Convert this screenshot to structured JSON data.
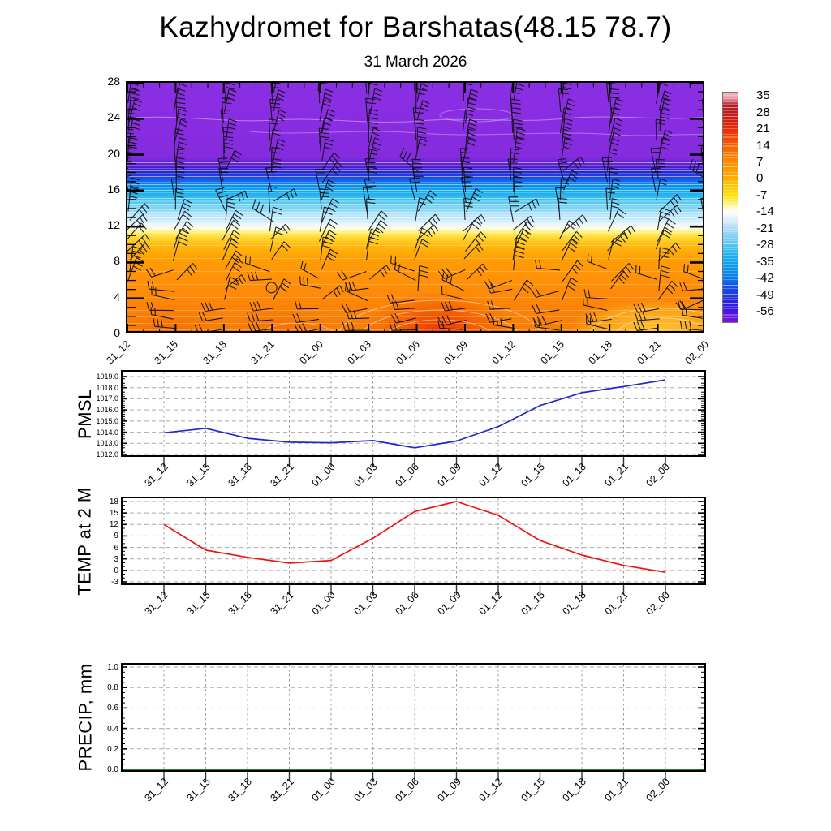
{
  "title": "Kazhydromet for Barshatas(48.15 78.7)",
  "subtitle": "31 March 2026",
  "time_labels": [
    "31_12",
    "31_15",
    "31_18",
    "31_21",
    "01_00",
    "01_03",
    "01_06",
    "01_09",
    "01_12",
    "01_15",
    "01_18",
    "01_21",
    "02_00"
  ],
  "chart_data": [
    {
      "panel": "upper_air_section",
      "type": "heatmap",
      "description": "Time-height cross-section of temperature (shaded, deg C) with wind barbs and thin white temperature contour lines",
      "x_categories": [
        "31_12",
        "31_15",
        "31_18",
        "31_21",
        "01_00",
        "01_03",
        "01_06",
        "01_09",
        "01_12",
        "01_15",
        "01_18",
        "01_21",
        "02_00"
      ],
      "ylim": [
        0,
        28
      ],
      "y_tick_labels": [
        "0",
        "4",
        "8",
        "12",
        "16",
        "20",
        "24",
        "28"
      ],
      "colorbar_tick_labels": [
        "35",
        "28",
        "21",
        "14",
        "7",
        "0",
        "-7",
        "-14",
        "-21",
        "-28",
        "-35",
        "-42",
        "-49",
        "-56"
      ],
      "colorbar_stops": [
        {
          "f": 0.0,
          "c": "#F7B2BC"
        },
        {
          "f": 0.018,
          "c": "#F2A8B4"
        },
        {
          "f": 0.035,
          "c": "#D8707E"
        },
        {
          "f": 0.055,
          "c": "#B22028"
        },
        {
          "f": 0.089,
          "c": "#C01818"
        },
        {
          "f": 0.125,
          "c": "#D81E10"
        },
        {
          "f": 0.161,
          "c": "#E8300C"
        },
        {
          "f": 0.2,
          "c": "#F04A06"
        },
        {
          "f": 0.233,
          "c": "#F56202"
        },
        {
          "f": 0.27,
          "c": "#FA7A00"
        },
        {
          "f": 0.305,
          "c": "#FE8E00"
        },
        {
          "f": 0.34,
          "c": "#FF9E00"
        },
        {
          "f": 0.376,
          "c": "#FFB000"
        },
        {
          "f": 0.41,
          "c": "#FFC704"
        },
        {
          "f": 0.448,
          "c": "#FFE20A"
        },
        {
          "f": 0.48,
          "c": "#FDF06E"
        },
        {
          "f": 0.5,
          "c": "#FDFAC8"
        },
        {
          "f": 0.52,
          "c": "#FEFEF8"
        },
        {
          "f": 0.545,
          "c": "#E6F3FB"
        },
        {
          "f": 0.592,
          "c": "#B0DDF6"
        },
        {
          "f": 0.63,
          "c": "#7ECFF3"
        },
        {
          "f": 0.663,
          "c": "#55C5F0"
        },
        {
          "f": 0.7,
          "c": "#28B4EE"
        },
        {
          "f": 0.735,
          "c": "#12A6EC"
        },
        {
          "f": 0.77,
          "c": "#0C92EA"
        },
        {
          "f": 0.807,
          "c": "#0A7AE8"
        },
        {
          "f": 0.84,
          "c": "#1256E4"
        },
        {
          "f": 0.879,
          "c": "#1C38E0"
        },
        {
          "f": 0.915,
          "c": "#2A20E0"
        },
        {
          "f": 0.95,
          "c": "#4414E2"
        },
        {
          "f": 0.975,
          "c": "#6212E0"
        },
        {
          "f": 1.0,
          "c": "#7E14DE"
        }
      ],
      "approx_temp_profile": [
        {
          "height": 0,
          "temp_c": 10
        },
        {
          "height": 2,
          "temp_c": 8
        },
        {
          "height": 4,
          "temp_c": 7
        },
        {
          "height": 6,
          "temp_c": 6
        },
        {
          "height": 8,
          "temp_c": 5
        },
        {
          "height": 10,
          "temp_c": 2
        },
        {
          "height": 11,
          "temp_c": -3
        },
        {
          "height": 12,
          "temp_c": -12
        },
        {
          "height": 13,
          "temp_c": -18
        },
        {
          "height": 14,
          "temp_c": -24
        },
        {
          "height": 15,
          "temp_c": -30
        },
        {
          "height": 16,
          "temp_c": -34
        },
        {
          "height": 17,
          "temp_c": -42
        },
        {
          "height": 18,
          "temp_c": -50
        },
        {
          "height": 19,
          "temp_c": -56
        },
        {
          "height": 28,
          "temp_c": -58
        }
      ],
      "surface_hot_spot": {
        "time_range": "01_06-01_09",
        "temp_c": 18
      },
      "calm_circle": {
        "time": "31_21",
        "height": 5.2
      },
      "wind_barbs": {
        "columns": 13,
        "rows_per_column": 25,
        "note": "mostly westerly to northwesterly flow, barbs at every level"
      }
    },
    {
      "panel": "pmsl",
      "type": "line",
      "ylabel": "PMSL",
      "ylim": [
        1012.0,
        1019.0
      ],
      "y_tick_labels": [
        "1012.0",
        "1013.0",
        "1014.0",
        "1015.0",
        "1016.0",
        "1017.0",
        "1018.0",
        "1019.0"
      ],
      "x": [
        "31_12",
        "31_15",
        "31_18",
        "31_21",
        "01_00",
        "01_03",
        "01_06",
        "01_09",
        "01_12",
        "01_15",
        "01_18",
        "01_21",
        "02_00"
      ],
      "values": [
        1013.95,
        1014.35,
        1013.45,
        1013.1,
        1013.05,
        1013.25,
        1012.6,
        1013.2,
        1014.5,
        1016.4,
        1017.55,
        1018.1,
        1018.7
      ],
      "line_color": "#2228cc",
      "grid": true
    },
    {
      "panel": "temp2m",
      "type": "line",
      "ylabel": "TEMP at 2 M",
      "ylim": [
        -3,
        18
      ],
      "y_tick_labels": [
        "-3",
        "0",
        "3",
        "6",
        "9",
        "12",
        "15",
        "18"
      ],
      "x": [
        "31_12",
        "31_15",
        "31_18",
        "31_21",
        "01_00",
        "01_03",
        "01_06",
        "01_09",
        "01_12",
        "01_15",
        "01_18",
        "01_21",
        "02_00"
      ],
      "values": [
        12.0,
        5.3,
        3.4,
        1.9,
        2.6,
        8.4,
        15.4,
        18.0,
        14.4,
        7.8,
        4.0,
        1.3,
        -0.5
      ],
      "line_color": "#ee1111",
      "grid": true
    },
    {
      "panel": "precip",
      "type": "line",
      "ylabel": "PRECIP, mm",
      "ylim": [
        0.0,
        1.0
      ],
      "y_tick_labels": [
        "0.0",
        "0.2",
        "0.4",
        "0.6",
        "0.8",
        "1.0"
      ],
      "x": [
        "31_12",
        "31_15",
        "31_18",
        "31_21",
        "01_00",
        "01_03",
        "01_06",
        "01_09",
        "01_12",
        "01_15",
        "01_18",
        "01_21",
        "02_00"
      ],
      "values": [
        0,
        0,
        0,
        0,
        0,
        0,
        0,
        0,
        0,
        0,
        0,
        0,
        0
      ],
      "line_color": "#067a06",
      "grid": true
    }
  ]
}
